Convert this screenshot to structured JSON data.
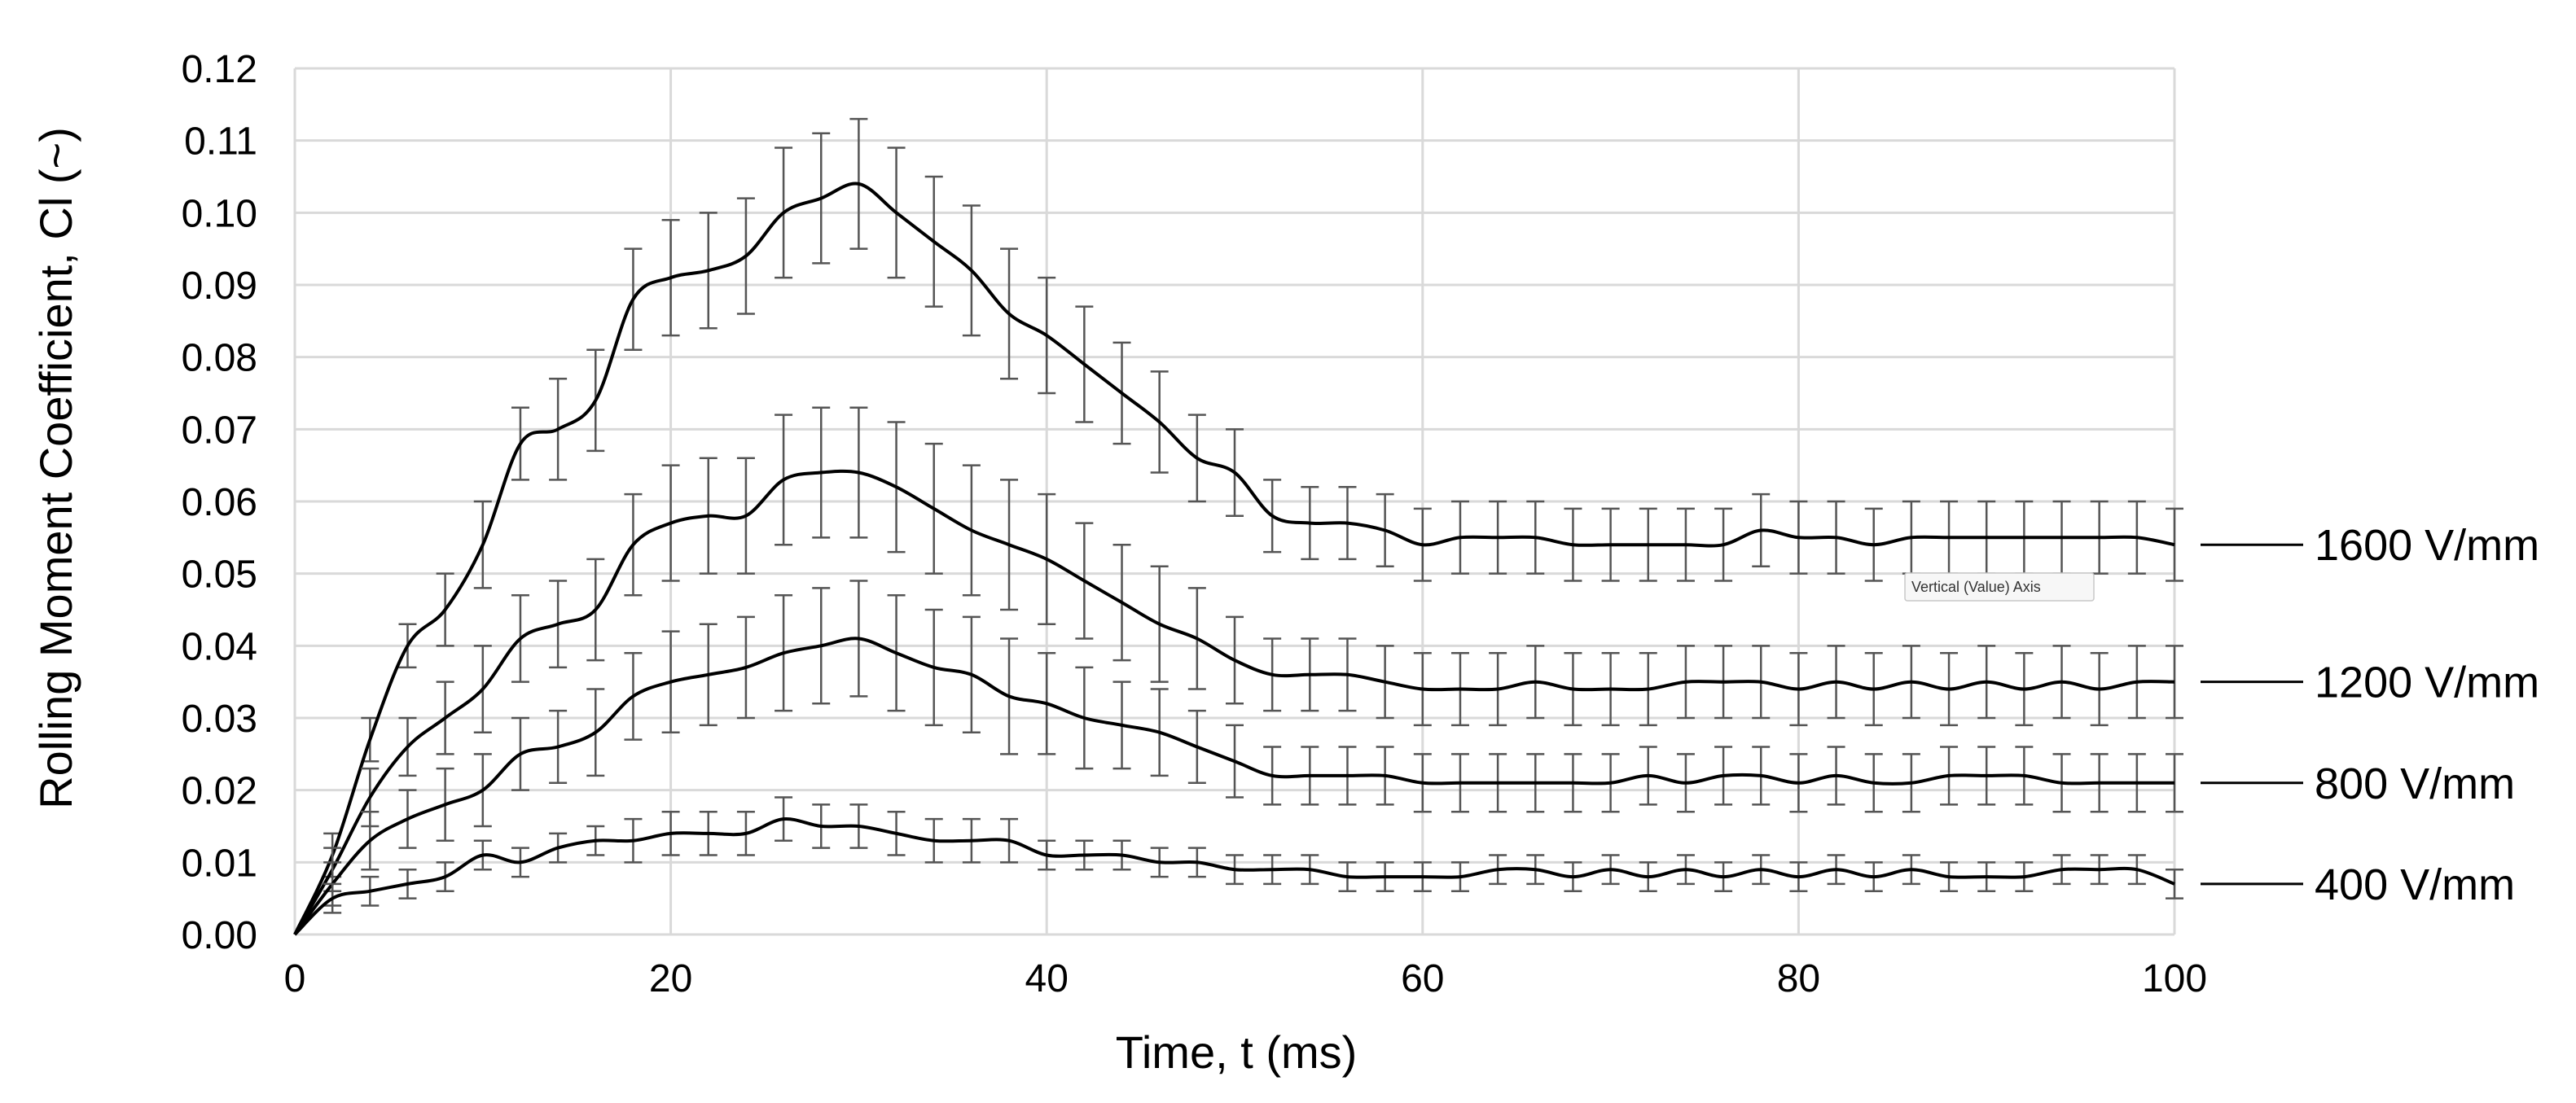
{
  "chart_data": {
    "type": "line",
    "title": "",
    "xlabel": "Time, t (ms)",
    "ylabel": "Rolling Moment Coefficient, Cl (~)",
    "xlim": [
      0,
      100
    ],
    "ylim": [
      0,
      0.12
    ],
    "x_ticks": [
      "0",
      "20",
      "40",
      "60",
      "80",
      "100"
    ],
    "y_ticks": [
      "0.00",
      "0.01",
      "0.02",
      "0.03",
      "0.04",
      "0.05",
      "0.06",
      "0.07",
      "0.08",
      "0.09",
      "0.10",
      "0.11",
      "0.12"
    ],
    "grid": true,
    "legend_position": "right",
    "annotations": [
      "Vertical (Value) Axis"
    ],
    "x": [
      0,
      2,
      4,
      6,
      8,
      10,
      12,
      14,
      16,
      18,
      20,
      22,
      24,
      26,
      28,
      30,
      32,
      34,
      36,
      38,
      40,
      42,
      44,
      46,
      48,
      50,
      52,
      54,
      56,
      58,
      60,
      62,
      64,
      66,
      68,
      70,
      72,
      74,
      76,
      78,
      80,
      82,
      84,
      86,
      88,
      90,
      92,
      94,
      96,
      98,
      100
    ],
    "series": [
      {
        "name": "1600 V/mm",
        "values": [
          0.0,
          0.011,
          0.027,
          0.04,
          0.045,
          0.054,
          0.068,
          0.07,
          0.074,
          0.088,
          0.091,
          0.092,
          0.094,
          0.1,
          0.102,
          0.104,
          0.1,
          0.096,
          0.092,
          0.086,
          0.083,
          0.079,
          0.075,
          0.071,
          0.066,
          0.064,
          0.058,
          0.057,
          0.057,
          0.056,
          0.054,
          0.055,
          0.055,
          0.055,
          0.054,
          0.054,
          0.054,
          0.054,
          0.054,
          0.056,
          0.055,
          0.055,
          0.054,
          0.055,
          0.055,
          0.055,
          0.055,
          0.055,
          0.055,
          0.055,
          0.054
        ],
        "error": [
          0.0,
          0.003,
          0.003,
          0.003,
          0.005,
          0.006,
          0.005,
          0.007,
          0.007,
          0.007,
          0.008,
          0.008,
          0.008,
          0.009,
          0.009,
          0.009,
          0.009,
          0.009,
          0.009,
          0.009,
          0.008,
          0.008,
          0.007,
          0.007,
          0.006,
          0.006,
          0.005,
          0.005,
          0.005,
          0.005,
          0.005,
          0.005,
          0.005,
          0.005,
          0.005,
          0.005,
          0.005,
          0.005,
          0.005,
          0.005,
          0.005,
          0.005,
          0.005,
          0.005,
          0.005,
          0.005,
          0.005,
          0.005,
          0.005,
          0.005,
          0.005
        ]
      },
      {
        "name": "1200 V/mm",
        "values": [
          0.0,
          0.009,
          0.019,
          0.026,
          0.03,
          0.034,
          0.041,
          0.043,
          0.045,
          0.054,
          0.057,
          0.058,
          0.058,
          0.063,
          0.064,
          0.064,
          0.062,
          0.059,
          0.056,
          0.054,
          0.052,
          0.049,
          0.046,
          0.043,
          0.041,
          0.038,
          0.036,
          0.036,
          0.036,
          0.035,
          0.034,
          0.034,
          0.034,
          0.035,
          0.034,
          0.034,
          0.034,
          0.035,
          0.035,
          0.035,
          0.034,
          0.035,
          0.034,
          0.035,
          0.034,
          0.035,
          0.034,
          0.035,
          0.034,
          0.035,
          0.035
        ],
        "error": [
          0.0,
          0.003,
          0.004,
          0.004,
          0.005,
          0.006,
          0.006,
          0.006,
          0.007,
          0.007,
          0.008,
          0.008,
          0.008,
          0.009,
          0.009,
          0.009,
          0.009,
          0.009,
          0.009,
          0.009,
          0.009,
          0.008,
          0.008,
          0.008,
          0.007,
          0.006,
          0.005,
          0.005,
          0.005,
          0.005,
          0.005,
          0.005,
          0.005,
          0.005,
          0.005,
          0.005,
          0.005,
          0.005,
          0.005,
          0.005,
          0.005,
          0.005,
          0.005,
          0.005,
          0.005,
          0.005,
          0.005,
          0.005,
          0.005,
          0.005,
          0.005
        ]
      },
      {
        "name": "800 V/mm",
        "values": [
          0.0,
          0.007,
          0.013,
          0.016,
          0.018,
          0.02,
          0.025,
          0.026,
          0.028,
          0.033,
          0.035,
          0.036,
          0.037,
          0.039,
          0.04,
          0.041,
          0.039,
          0.037,
          0.036,
          0.033,
          0.032,
          0.03,
          0.029,
          0.028,
          0.026,
          0.024,
          0.022,
          0.022,
          0.022,
          0.022,
          0.021,
          0.021,
          0.021,
          0.021,
          0.021,
          0.021,
          0.022,
          0.021,
          0.022,
          0.022,
          0.021,
          0.022,
          0.021,
          0.021,
          0.022,
          0.022,
          0.022,
          0.021,
          0.021,
          0.021,
          0.021
        ],
        "error": [
          0.0,
          0.003,
          0.004,
          0.004,
          0.005,
          0.005,
          0.005,
          0.005,
          0.006,
          0.006,
          0.007,
          0.007,
          0.007,
          0.008,
          0.008,
          0.008,
          0.008,
          0.008,
          0.008,
          0.008,
          0.007,
          0.007,
          0.006,
          0.006,
          0.005,
          0.005,
          0.004,
          0.004,
          0.004,
          0.004,
          0.004,
          0.004,
          0.004,
          0.004,
          0.004,
          0.004,
          0.004,
          0.004,
          0.004,
          0.004,
          0.004,
          0.004,
          0.004,
          0.004,
          0.004,
          0.004,
          0.004,
          0.004,
          0.004,
          0.004,
          0.004
        ]
      },
      {
        "name": "400 V/mm",
        "values": [
          0.0,
          0.005,
          0.006,
          0.007,
          0.008,
          0.011,
          0.01,
          0.012,
          0.013,
          0.013,
          0.014,
          0.014,
          0.014,
          0.016,
          0.015,
          0.015,
          0.014,
          0.013,
          0.013,
          0.013,
          0.011,
          0.011,
          0.011,
          0.01,
          0.01,
          0.009,
          0.009,
          0.009,
          0.008,
          0.008,
          0.008,
          0.008,
          0.009,
          0.009,
          0.008,
          0.009,
          0.008,
          0.009,
          0.008,
          0.009,
          0.008,
          0.009,
          0.008,
          0.009,
          0.008,
          0.008,
          0.008,
          0.009,
          0.009,
          0.009,
          0.007
        ],
        "error": [
          0.0,
          0.002,
          0.002,
          0.002,
          0.002,
          0.002,
          0.002,
          0.002,
          0.002,
          0.003,
          0.003,
          0.003,
          0.003,
          0.003,
          0.003,
          0.003,
          0.003,
          0.003,
          0.003,
          0.003,
          0.002,
          0.002,
          0.002,
          0.002,
          0.002,
          0.002,
          0.002,
          0.002,
          0.002,
          0.002,
          0.002,
          0.002,
          0.002,
          0.002,
          0.002,
          0.002,
          0.002,
          0.002,
          0.002,
          0.002,
          0.002,
          0.002,
          0.002,
          0.002,
          0.002,
          0.002,
          0.002,
          0.002,
          0.002,
          0.002,
          0.002
        ]
      }
    ]
  }
}
